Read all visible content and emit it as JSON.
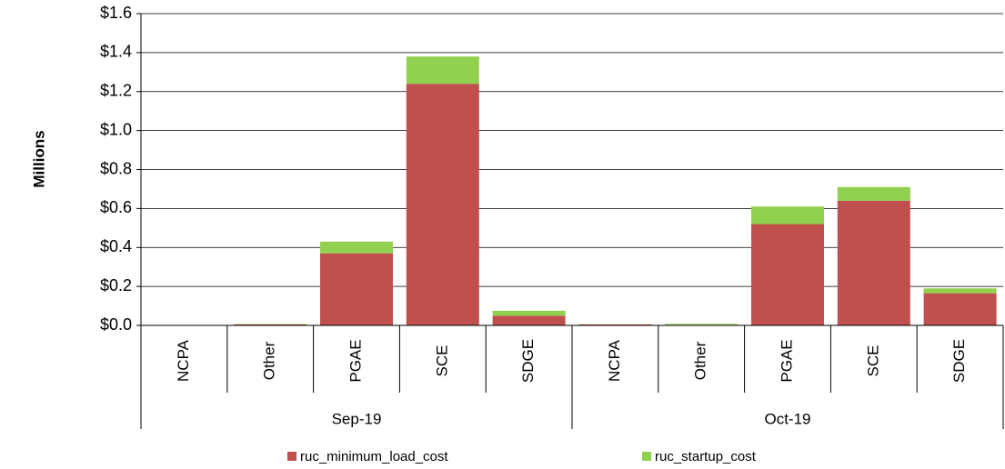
{
  "chart_data": {
    "type": "stacked-bar",
    "y_label": "Millions",
    "category_groups": [
      {
        "name": "Sep-19",
        "categories": [
          "NCPA",
          "Other",
          "PGAE",
          "SCE",
          "SDGE"
        ]
      },
      {
        "name": "Oct-19",
        "categories": [
          "NCPA",
          "Other",
          "PGAE",
          "SCE",
          "SDGE"
        ]
      }
    ],
    "series": [
      {
        "name": "ruc_minimum_load_cost",
        "color": "#c0504d",
        "values": [
          0,
          0.005,
          0.37,
          1.24,
          0.05,
          0.005,
          0.003,
          0.52,
          0.64,
          0.165
        ]
      },
      {
        "name": "ruc_startup_cost",
        "color": "#92d050",
        "values": [
          0,
          0.002,
          0.06,
          0.14,
          0.025,
          0.001,
          0.005,
          0.09,
          0.07,
          0.025
        ]
      }
    ],
    "ylim": [
      0,
      1.6
    ],
    "yticks": [
      {
        "value": 0,
        "label": "$0.0"
      },
      {
        "value": 0.2,
        "label": "$0.2"
      },
      {
        "value": 0.4,
        "label": "$0.4"
      },
      {
        "value": 0.6,
        "label": "$0.6"
      },
      {
        "value": 0.8,
        "label": "$0.8"
      },
      {
        "value": 1.0,
        "label": "$1.0"
      },
      {
        "value": 1.2,
        "label": "$1.2"
      },
      {
        "value": 1.4,
        "label": "$1.4"
      },
      {
        "value": 1.6,
        "label": "$1.6"
      }
    ],
    "grid": true
  }
}
